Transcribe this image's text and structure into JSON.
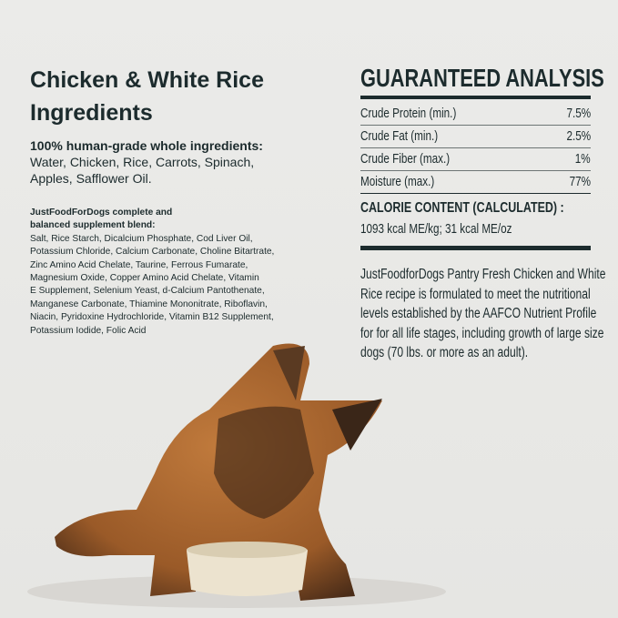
{
  "ingredients": {
    "title_line1": "Chicken & White Rice",
    "title_line2": "Ingredients",
    "subtitle": "100% human-grade whole ingredients:",
    "list_lines": [
      "Water, Chicken, Rice, Carrots, Spinach,",
      "Apples, Safflower Oil."
    ],
    "supplement_heading_lines": [
      "JustFoodForDogs complete and",
      "balanced supplement blend:"
    ],
    "supplement_lines": [
      "Salt, Rice Starch, Dicalcium Phosphate, Cod Liver Oil,",
      "Potassium Chloride, Calcium Carbonate, Choline Bitartrate,",
      "Zinc Amino Acid Chelate, Taurine, Ferrous Fumarate,",
      "Magnesium Oxide, Copper Amino Acid Chelate, Vitamin",
      "E Supplement, Selenium Yeast, d-Calcium Pantothenate,",
      "Manganese Carbonate, Thiamine Mononitrate, Riboflavin,",
      "Niacin, Pyridoxine Hydrochloride, Vitamin B12 Supplement,",
      "Potassium Iodide, Folic Acid"
    ]
  },
  "analysis": {
    "title": "GUARANTEED ANALYSIS",
    "rows": [
      {
        "label": "Crude Protein (min.)",
        "value": "7.5%"
      },
      {
        "label": "Crude Fat (min.)",
        "value": "2.5%"
      },
      {
        "label": "Crude Fiber (max.)",
        "value": "1%"
      },
      {
        "label": "Moisture (max.)",
        "value": "77%"
      }
    ],
    "calorie_heading": "CALORIE CONTENT (CALCULATED) :",
    "calorie_value": "1093 kcal ME/kg; 31 kcal ME/oz",
    "statement_lines": [
      "JustFoodforDogs Pantry Fresh  Chicken and White",
      "Rice recipe is formulated to meet the nutritional",
      "levels established by the AAFCO Nutrient Profile",
      "for for all life stages, including growth of large size",
      "dogs (70 lbs. or more as an adult)."
    ]
  },
  "colors": {
    "text": "#1c2b2d",
    "background": "#ebebe9"
  }
}
